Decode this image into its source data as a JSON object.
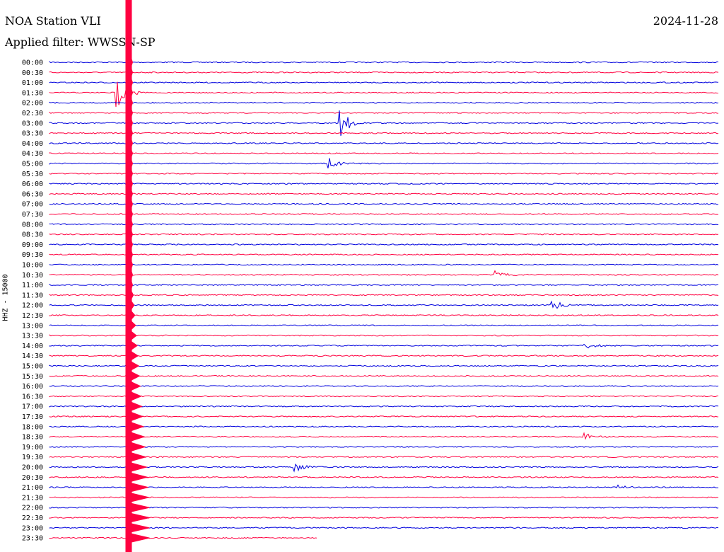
{
  "header": {
    "station": "NOA Station VLI",
    "date": "2024-11-28",
    "filter": "Applied filter: WWSSN-SP"
  },
  "chart_data": {
    "type": "line",
    "title": "NOA Station VLI",
    "ylabel": "HHZ - 15000",
    "colors": {
      "even_trace": "#0000dd",
      "odd_trace": "#ff0040"
    },
    "rows": [
      "00:00",
      "00:30",
      "01:00",
      "01:30",
      "02:00",
      "02:30",
      "03:00",
      "03:30",
      "04:00",
      "04:30",
      "05:00",
      "05:30",
      "06:00",
      "06:30",
      "07:00",
      "07:30",
      "08:00",
      "08:30",
      "09:00",
      "09:30",
      "10:00",
      "10:30",
      "11:00",
      "11:30",
      "12:00",
      "12:30",
      "13:00",
      "13:30",
      "14:00",
      "14:30",
      "15:00",
      "15:30",
      "16:00",
      "16:30",
      "17:00",
      "17:30",
      "18:00",
      "18:30",
      "19:00",
      "19:30",
      "20:00",
      "20:30",
      "21:00",
      "21:30",
      "22:00",
      "22:30",
      "23:00",
      "23:30"
    ],
    "events": [
      {
        "row": 3,
        "x_minutes": 3.0,
        "amplitude": "large"
      },
      {
        "row": 6,
        "x_minutes": 13.0,
        "amplitude": "large"
      },
      {
        "row": 10,
        "x_minutes": 12.5,
        "amplitude": "medium"
      },
      {
        "row": 21,
        "x_minutes": 20.0,
        "amplitude": "small"
      },
      {
        "row": 24,
        "x_minutes": 22.5,
        "amplitude": "medium"
      },
      {
        "row": 28,
        "x_minutes": 24.0,
        "amplitude": "small"
      },
      {
        "row": 37,
        "x_minutes": 24.0,
        "amplitude": "small"
      },
      {
        "row": 40,
        "x_minutes": 11.0,
        "amplitude": "medium"
      },
      {
        "row": 42,
        "x_minutes": 25.5,
        "amplitude": "tiny"
      }
    ],
    "main_quake": {
      "x_minutes": 3.5,
      "start_row": 0,
      "end_row": 47
    }
  }
}
